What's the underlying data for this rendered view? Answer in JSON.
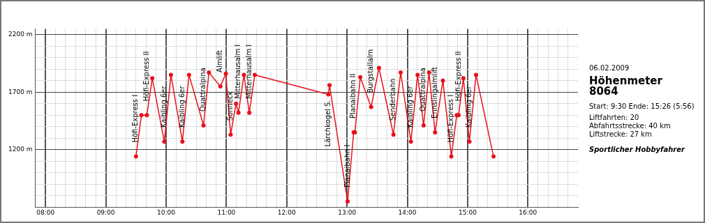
{
  "chart_data": {
    "type": "line",
    "subtitle": "06.02.2009",
    "title": "Höhenmeter 8064",
    "x": [
      9.5,
      9.59,
      9.68,
      9.77,
      9.97,
      10.08,
      10.27,
      10.38,
      10.62,
      10.71,
      10.9,
      10.99,
      11.07,
      11.16,
      11.2,
      11.29,
      11.38,
      11.47,
      12.69,
      12.71,
      13.01,
      13.11,
      13.13,
      13.22,
      13.4,
      13.53,
      13.77,
      13.89,
      14.06,
      14.17,
      14.27,
      14.36,
      14.46,
      14.59,
      14.73,
      14.82,
      14.85,
      14.93,
      15.03,
      15.14,
      15.43
    ],
    "values": [
      1140,
      1500,
      1500,
      1820,
      1270,
      1850,
      1270,
      1850,
      1410,
      1870,
      1750,
      1860,
      1330,
      1600,
      1520,
      1850,
      1520,
      1850,
      1680,
      1760,
      750,
      1350,
      1350,
      1830,
      1570,
      1910,
      1330,
      1870,
      1270,
      1850,
      1410,
      1870,
      1350,
      1800,
      1140,
      1500,
      1500,
      1820,
      1270,
      1850,
      1140
    ],
    "color": "#e8101a",
    "marker": "circle",
    "grid": true,
    "legend": false,
    "xlim": [
      7.83,
      16.83
    ],
    "ylim": [
      700,
      2250
    ],
    "xticks": [
      {
        "value": 8,
        "label": "08:00"
      },
      {
        "value": 8.167,
        "label": null
      },
      {
        "value": 8.333,
        "label": null
      },
      {
        "value": 8.5,
        "label": null
      },
      {
        "value": 8.667,
        "label": null
      },
      {
        "value": 8.833,
        "label": null
      },
      {
        "value": 9,
        "label": "09:00"
      },
      {
        "value": 9.167,
        "label": null
      },
      {
        "value": 9.333,
        "label": null
      },
      {
        "value": 9.5,
        "label": null
      },
      {
        "value": 9.667,
        "label": null
      },
      {
        "value": 9.833,
        "label": null
      },
      {
        "value": 10,
        "label": "10:00"
      },
      {
        "value": 10.167,
        "label": null
      },
      {
        "value": 10.333,
        "label": null
      },
      {
        "value": 10.5,
        "label": null
      },
      {
        "value": 10.667,
        "label": null
      },
      {
        "value": 10.833,
        "label": null
      },
      {
        "value": 11,
        "label": "11:00"
      },
      {
        "value": 11.167,
        "label": null
      },
      {
        "value": 11.333,
        "label": null
      },
      {
        "value": 11.5,
        "label": null
      },
      {
        "value": 11.667,
        "label": null
      },
      {
        "value": 11.833,
        "label": null
      },
      {
        "value": 12,
        "label": "12:00"
      },
      {
        "value": 12.167,
        "label": null
      },
      {
        "value": 12.333,
        "label": null
      },
      {
        "value": 12.5,
        "label": null
      },
      {
        "value": 12.667,
        "label": null
      },
      {
        "value": 12.833,
        "label": null
      },
      {
        "value": 13,
        "label": "13:00"
      },
      {
        "value": 13.167,
        "label": null
      },
      {
        "value": 13.333,
        "label": null
      },
      {
        "value": 13.5,
        "label": null
      },
      {
        "value": 13.667,
        "label": null
      },
      {
        "value": 13.833,
        "label": null
      },
      {
        "value": 14,
        "label": "14:00"
      },
      {
        "value": 14.167,
        "label": null
      },
      {
        "value": 14.333,
        "label": null
      },
      {
        "value": 14.5,
        "label": null
      },
      {
        "value": 14.667,
        "label": null
      },
      {
        "value": 14.833,
        "label": null
      },
      {
        "value": 15,
        "label": "15:00"
      },
      {
        "value": 15.167,
        "label": null
      },
      {
        "value": 15.333,
        "label": null
      },
      {
        "value": 15.5,
        "label": null
      },
      {
        "value": 15.667,
        "label": null
      },
      {
        "value": 15.833,
        "label": null
      },
      {
        "value": 16,
        "label": "16:00"
      },
      {
        "value": 16.167,
        "label": null
      },
      {
        "value": 16.333,
        "label": null
      },
      {
        "value": 16.5,
        "label": null
      },
      {
        "value": 16.667,
        "label": null
      }
    ],
    "yticks": [
      {
        "value": 800,
        "label": null
      },
      {
        "value": 900,
        "label": null
      },
      {
        "value": 1000,
        "label": null
      },
      {
        "value": 1100,
        "label": null
      },
      {
        "value": 1200,
        "label": "1200 m"
      },
      {
        "value": 1300,
        "label": null
      },
      {
        "value": 1400,
        "label": null
      },
      {
        "value": 1500,
        "label": null
      },
      {
        "value": 1600,
        "label": null
      },
      {
        "value": 1700,
        "label": "1700 m"
      },
      {
        "value": 1800,
        "label": null
      },
      {
        "value": 1900,
        "label": null
      },
      {
        "value": 2000,
        "label": null
      },
      {
        "value": 2100,
        "label": null
      },
      {
        "value": 2200,
        "label": "2200 m"
      }
    ],
    "annotations": [
      {
        "text": "Höfi-Express I",
        "x": 9.5,
        "y": 1140
      },
      {
        "text": "Höfi-Express II",
        "x": 9.68,
        "y": 1500
      },
      {
        "text": "Kaibling 6er",
        "x": 9.97,
        "y": 1270
      },
      {
        "text": "Kaibling 6er",
        "x": 10.27,
        "y": 1270
      },
      {
        "text": "Quattralpina",
        "x": 10.62,
        "y": 1410
      },
      {
        "text": "Almlift",
        "x": 10.9,
        "y": 1750
      },
      {
        "text": "Sonneck",
        "x": 11.07,
        "y": 1330
      },
      {
        "text": "Mitterhausalm I",
        "x": 11.2,
        "y": 1520
      },
      {
        "text": "Mitterhausalm I",
        "x": 11.38,
        "y": 1520
      },
      {
        "text": "Lärchkogel S.",
        "x": 12.69,
        "y": 1680
      },
      {
        "text": "Planaibahn I",
        "x": 13.01,
        "y": 750
      },
      {
        "text": "Planaibahn II",
        "x": 13.11,
        "y": 1350
      },
      {
        "text": "Burgstallalm",
        "x": 13.4,
        "y": 1570
      },
      {
        "text": "Senderbahn",
        "x": 13.77,
        "y": 1330
      },
      {
        "text": "Kaibling 6er",
        "x": 14.06,
        "y": 1270
      },
      {
        "text": "Quattralpina",
        "x": 14.27,
        "y": 1410
      },
      {
        "text": "Ennslingalmlift",
        "x": 14.46,
        "y": 1350
      },
      {
        "text": "Höfi-Express I",
        "x": 14.73,
        "y": 1140
      },
      {
        "text": "Höfi-Express II",
        "x": 14.85,
        "y": 1500
      },
      {
        "text": "Kaibling 6er",
        "x": 15.03,
        "y": 1270
      },
      "Start: 9:30  Ende: 15:26 (5:56)",
      "Liftfahrten: 20",
      "Abfahrtsstrecke: 40 km",
      "Liftstrecke: 27 km",
      "Sportlicher Hobbyfahrer"
    ]
  }
}
